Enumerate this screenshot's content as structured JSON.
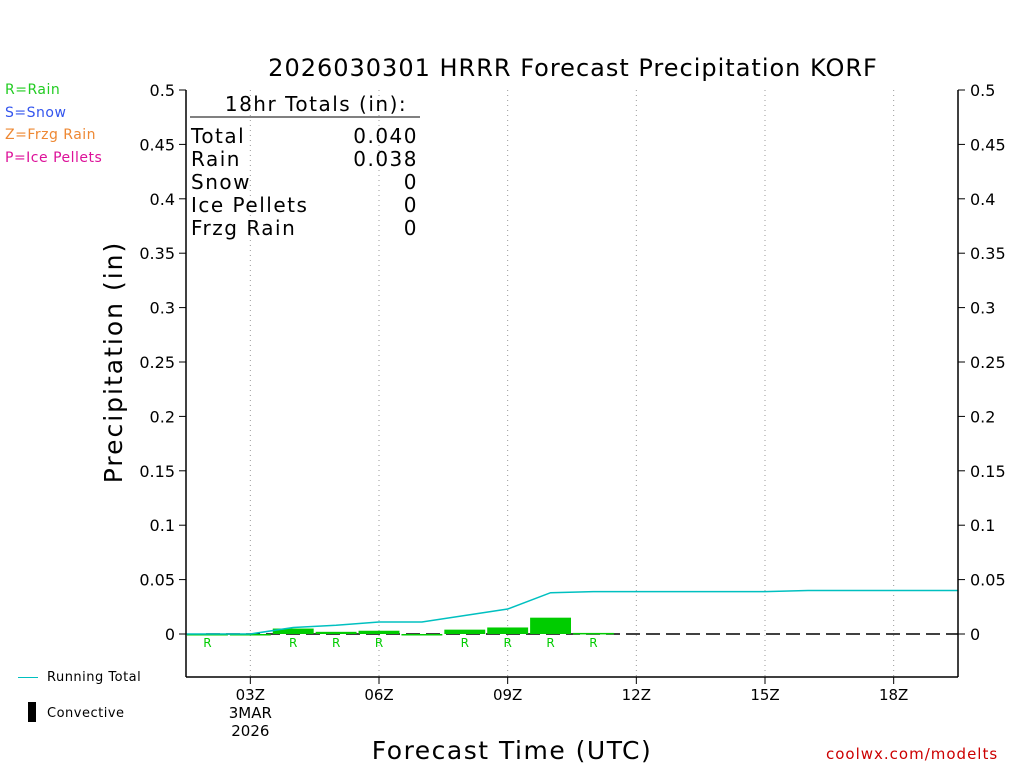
{
  "chart_data": {
    "type": "bar",
    "title": "2026030301 HRRR Forecast Precipitation KORF",
    "xlabel": "Forecast Time (UTC)",
    "ylabel": "Precipitation (in)",
    "ylim": [
      -0.04,
      0.5
    ],
    "y_ticks": [
      0,
      0.05,
      0.1,
      0.15,
      0.2,
      0.25,
      0.3,
      0.35,
      0.4,
      0.45,
      0.5
    ],
    "y_tick_labels": [
      "0",
      "0.05",
      "0.1",
      "0.15",
      "0.2",
      "0.25",
      "0.3",
      "0.35",
      "0.4",
      "0.45",
      "0.5"
    ],
    "xlim": [
      1.5,
      19.5
    ],
    "x_ticks": [
      {
        "hour": 3,
        "label": "03Z",
        "sub1": "3MAR",
        "sub2": "2026"
      },
      {
        "hour": 6,
        "label": "06Z",
        "sub1": "",
        "sub2": ""
      },
      {
        "hour": 9,
        "label": "09Z",
        "sub1": "",
        "sub2": ""
      },
      {
        "hour": 12,
        "label": "12Z",
        "sub1": "",
        "sub2": ""
      },
      {
        "hour": 15,
        "label": "15Z",
        "sub1": "",
        "sub2": ""
      },
      {
        "hour": 18,
        "label": "18Z",
        "sub1": "",
        "sub2": ""
      }
    ],
    "grid": "vertical dotted at x ticks",
    "hourly_bars": {
      "name": "Rain",
      "color": "#00cc00",
      "hours": [
        2,
        3,
        4,
        5,
        6,
        7,
        8,
        9,
        10,
        11
      ],
      "values": [
        0.0,
        0.0,
        0.005,
        0.002,
        0.003,
        0.0,
        0.004,
        0.006,
        0.015,
        0.001
      ]
    },
    "convective_bars": {
      "name": "Convective",
      "color": "#000000",
      "hours": [],
      "values": []
    },
    "running_total": {
      "name": "Running Total",
      "color": "#00c0c0",
      "hours": [
        1.5,
        2,
        3,
        4,
        5,
        6,
        7,
        8,
        9,
        10,
        11,
        12,
        13,
        14,
        15,
        16,
        17,
        18,
        19,
        19.5
      ],
      "values": [
        0.0,
        0.0,
        0.0,
        0.006,
        0.008,
        0.011,
        0.011,
        0.017,
        0.023,
        0.038,
        0.039,
        0.039,
        0.039,
        0.039,
        0.039,
        0.04,
        0.04,
        0.04,
        0.04,
        0.04
      ]
    },
    "ptype_markers": {
      "hours": [
        2,
        4,
        5,
        6,
        8,
        9,
        10,
        11
      ],
      "labels": [
        "R",
        "R",
        "R",
        "R",
        "R",
        "R",
        "R",
        "R"
      ],
      "color": "#00cc00"
    }
  },
  "totals_box": {
    "heading": "18hr Totals (in):",
    "rows": [
      {
        "label": "Total",
        "value": "0.040"
      },
      {
        "label": "Rain",
        "value": "0.038"
      },
      {
        "label": "Snow",
        "value": "0"
      },
      {
        "label": "Ice Pellets",
        "value": "0"
      },
      {
        "label": "Frzg Rain",
        "value": "0"
      }
    ]
  },
  "ptype_legend": [
    {
      "text": "R=Rain",
      "color": "#22cc22"
    },
    {
      "text": "S=Snow",
      "color": "#3355ee"
    },
    {
      "text": "Z=Frzg Rain",
      "color": "#ee8833"
    },
    {
      "text": "P=Ice Pellets",
      "color": "#dd1199"
    }
  ],
  "series_legend": {
    "running_total_label": "Running Total",
    "convective_label": "Convective"
  },
  "credit": {
    "text": "coolwx.com/modelts",
    "color": "#cc0000"
  }
}
